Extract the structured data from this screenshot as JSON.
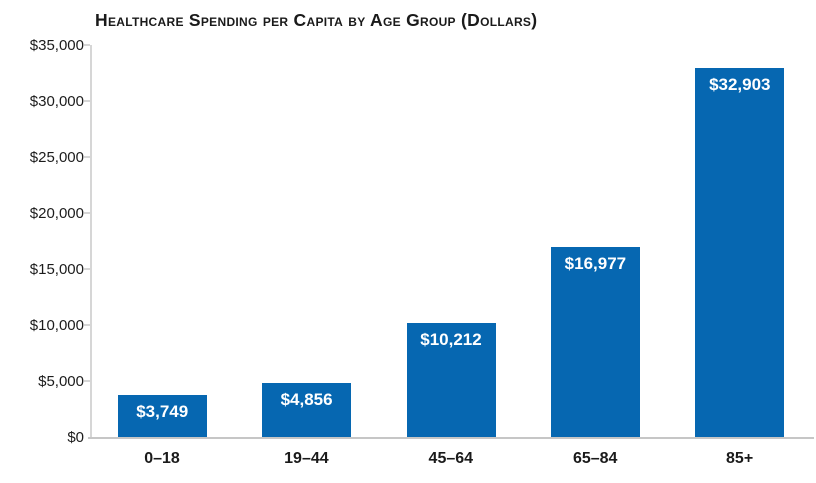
{
  "title": "Healthcare Spending per Capita by Age Group (Dollars)",
  "colors": {
    "bar": "#0667b1",
    "bar_label_text": "#ffffff",
    "axis_line": "#d6d6d6",
    "baseline": "#c6c6c6",
    "title_text": "#1a1a1a",
    "tick_label_text": "#1c1c1c",
    "category_label_text": "#1a1a1a",
    "background": "#ffffff"
  },
  "chart_data": {
    "type": "bar",
    "title": "Healthcare Spending per Capita by Age Group (Dollars)",
    "categories": [
      "0–18",
      "19–44",
      "45–64",
      "65–84",
      "85+"
    ],
    "values": [
      3749,
      4856,
      10212,
      16977,
      32903
    ],
    "value_labels": [
      "$3,749",
      "$4,856",
      "$10,212",
      "$16,977",
      "$32,903"
    ],
    "xlabel": "",
    "ylabel": "",
    "ylim": [
      0,
      35000
    ],
    "ytick_interval": 5000,
    "ytick_values": [
      0,
      5000,
      10000,
      15000,
      20000,
      25000,
      30000,
      35000
    ],
    "ytick_labels": [
      "$0",
      "$5,000",
      "$10,000",
      "$15,000",
      "$20,000",
      "$25,000",
      "$30,000",
      "$35,000"
    ],
    "grid": false,
    "legend": false,
    "bar_label_position": "inside-top"
  }
}
